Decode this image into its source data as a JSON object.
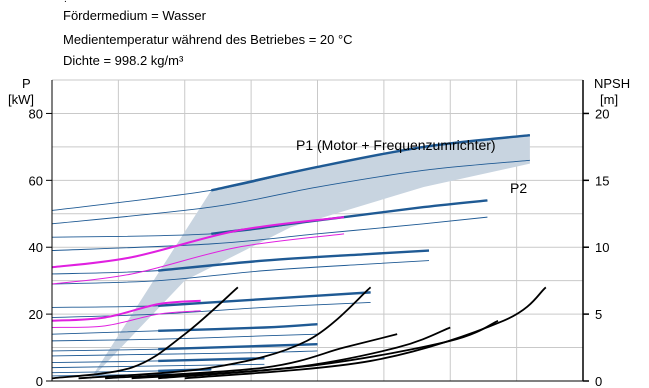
{
  "header": {
    "dot": ".",
    "line1": "Fördermedium = Wasser",
    "line2": "Medientemperatur während des Betriebes = 20 °C",
    "line3": "Dichte = 998.2 kg/m³"
  },
  "colors": {
    "grid": "#c9c9c9",
    "band": "#c8d4e0",
    "blue_dark": "#1f5a94",
    "blue_label": "#1f5a94",
    "magenta": "#e020e0",
    "black": "#000000"
  },
  "chart_data": {
    "type": "line",
    "y_left": {
      "label_line1": "P",
      "label_line2": "[kW]",
      "ticks": [
        "0",
        "20",
        "40",
        "60",
        "80"
      ],
      "range": [
        0,
        90
      ]
    },
    "y_right": {
      "label_line1": "NPSH",
      "label_line2": "[m]",
      "ticks": [
        "0",
        "5",
        "10",
        "15",
        "20"
      ],
      "range": [
        0,
        22.5
      ]
    },
    "grid": true,
    "annotations": {
      "p1": "P1 (Motor + Frequenzumrichter)",
      "p2": "P2"
    },
    "x_range": [
      0,
      1
    ],
    "band": {
      "upper": [
        [
          0.3,
          57
        ],
        [
          0.5,
          64
        ],
        [
          0.7,
          70
        ],
        [
          0.9,
          73.5
        ]
      ],
      "lower": [
        [
          0.07,
          0
        ],
        [
          0.25,
          30
        ],
        [
          0.45,
          46
        ],
        [
          0.7,
          58
        ],
        [
          0.9,
          65
        ]
      ]
    },
    "p1_series": [
      {
        "values": [
          [
            0.0,
            51
          ],
          [
            0.3,
            57
          ],
          [
            0.5,
            64
          ],
          [
            0.7,
            70
          ],
          [
            0.9,
            73.5
          ]
        ]
      },
      {
        "values": [
          [
            0.0,
            43
          ],
          [
            0.3,
            44
          ],
          [
            0.5,
            48
          ],
          [
            0.7,
            52
          ],
          [
            0.82,
            54
          ]
        ]
      },
      {
        "values": [
          [
            0.0,
            32
          ],
          [
            0.2,
            33
          ],
          [
            0.4,
            36
          ],
          [
            0.6,
            38
          ],
          [
            0.71,
            39
          ]
        ]
      },
      {
        "values": [
          [
            0.0,
            22
          ],
          [
            0.2,
            22.5
          ],
          [
            0.4,
            24.5
          ],
          [
            0.6,
            26.5
          ]
        ]
      },
      {
        "values": [
          [
            0.0,
            14
          ],
          [
            0.2,
            15
          ],
          [
            0.4,
            16
          ],
          [
            0.5,
            17
          ]
        ]
      },
      {
        "values": [
          [
            0.0,
            9
          ],
          [
            0.2,
            9.5
          ],
          [
            0.4,
            10.5
          ],
          [
            0.5,
            11
          ]
        ]
      },
      {
        "values": [
          [
            0.0,
            5.5
          ],
          [
            0.2,
            6
          ],
          [
            0.4,
            6.8
          ]
        ]
      },
      {
        "values": [
          [
            0.0,
            2.5
          ],
          [
            0.2,
            3
          ],
          [
            0.3,
            3.5
          ]
        ]
      }
    ],
    "p2_series": [
      {
        "values": [
          [
            0.0,
            47
          ],
          [
            0.3,
            52
          ],
          [
            0.5,
            58
          ],
          [
            0.7,
            63
          ],
          [
            0.9,
            66
          ]
        ]
      },
      {
        "values": [
          [
            0.0,
            39
          ],
          [
            0.3,
            41
          ],
          [
            0.5,
            44
          ],
          [
            0.7,
            47
          ],
          [
            0.82,
            49
          ]
        ]
      },
      {
        "values": [
          [
            0.0,
            29
          ],
          [
            0.2,
            30
          ],
          [
            0.4,
            33
          ],
          [
            0.6,
            35
          ],
          [
            0.71,
            36
          ]
        ]
      },
      {
        "values": [
          [
            0.0,
            19
          ],
          [
            0.2,
            20
          ],
          [
            0.4,
            22
          ],
          [
            0.6,
            23.5
          ]
        ]
      },
      {
        "values": [
          [
            0.0,
            12
          ],
          [
            0.2,
            12.5
          ],
          [
            0.4,
            13.5
          ],
          [
            0.5,
            14
          ]
        ]
      },
      {
        "values": [
          [
            0.0,
            7.5
          ],
          [
            0.2,
            8
          ],
          [
            0.4,
            8.5
          ],
          [
            0.5,
            9
          ]
        ]
      },
      {
        "values": [
          [
            0.0,
            4
          ],
          [
            0.2,
            4.5
          ],
          [
            0.4,
            5
          ]
        ]
      },
      {
        "values": [
          [
            0.0,
            1.5
          ],
          [
            0.2,
            2
          ],
          [
            0.3,
            2.3
          ]
        ]
      }
    ],
    "magenta_series": [
      {
        "values": [
          [
            0.0,
            34
          ],
          [
            0.15,
            37
          ],
          [
            0.35,
            45
          ],
          [
            0.55,
            49
          ]
        ]
      },
      {
        "values": [
          [
            0.0,
            29
          ],
          [
            0.15,
            32
          ],
          [
            0.35,
            40
          ],
          [
            0.55,
            44
          ]
        ]
      },
      {
        "values": [
          [
            0.0,
            18
          ],
          [
            0.1,
            19
          ],
          [
            0.2,
            23
          ],
          [
            0.28,
            24
          ]
        ]
      },
      {
        "values": [
          [
            0.0,
            16
          ],
          [
            0.1,
            16.5
          ],
          [
            0.2,
            20
          ],
          [
            0.28,
            21
          ]
        ]
      }
    ],
    "npsh_series": [
      {
        "values": [
          [
            0.0,
            0.2
          ],
          [
            0.15,
            1.0
          ],
          [
            0.25,
            3.5
          ],
          [
            0.35,
            7.0
          ]
        ]
      },
      {
        "values": [
          [
            0.05,
            0.2
          ],
          [
            0.3,
            1.0
          ],
          [
            0.48,
            3.0
          ],
          [
            0.6,
            7.0
          ]
        ]
      },
      {
        "values": [
          [
            0.1,
            0.2
          ],
          [
            0.4,
            1.0
          ],
          [
            0.55,
            2.5
          ],
          [
            0.65,
            3.5
          ]
        ]
      },
      {
        "values": [
          [
            0.15,
            0.2
          ],
          [
            0.45,
            1.0
          ],
          [
            0.65,
            2.5
          ],
          [
            0.75,
            4.0
          ]
        ]
      },
      {
        "values": [
          [
            0.2,
            0.2
          ],
          [
            0.5,
            1.2
          ],
          [
            0.75,
            3.0
          ],
          [
            0.84,
            4.5
          ]
        ]
      },
      {
        "values": [
          [
            0.25,
            0.2
          ],
          [
            0.6,
            1.5
          ],
          [
            0.85,
            4.5
          ],
          [
            0.93,
            7.0
          ]
        ]
      }
    ]
  }
}
